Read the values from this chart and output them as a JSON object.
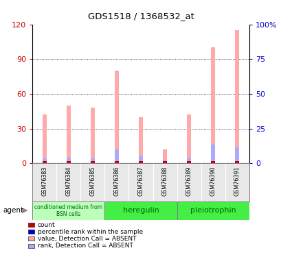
{
  "title": "GDS1518 / 1368532_at",
  "samples": [
    "GSM76383",
    "GSM76384",
    "GSM76385",
    "GSM76386",
    "GSM76387",
    "GSM76388",
    "GSM76389",
    "GSM76390",
    "GSM76391"
  ],
  "pink_values": [
    42,
    50,
    48,
    80,
    40,
    12,
    42,
    100,
    115
  ],
  "blue_values": [
    4,
    5,
    4,
    12,
    6,
    3,
    4,
    16,
    14
  ],
  "red_values": [
    2,
    2,
    2,
    2,
    2,
    2,
    2,
    2,
    2
  ],
  "ylim_left": [
    0,
    120
  ],
  "ylim_right": [
    0,
    100
  ],
  "yticks_left": [
    0,
    30,
    60,
    90,
    120
  ],
  "yticks_right": [
    0,
    25,
    50,
    75,
    100
  ],
  "ytick_labels_left": [
    "0",
    "30",
    "60",
    "90",
    "120"
  ],
  "ytick_labels_right": [
    "0",
    "25",
    "50",
    "75",
    "100%"
  ],
  "groups": [
    {
      "label": "conditioned medium from\nBSN cells",
      "start": 0,
      "end": 3,
      "color": "#bbffbb"
    },
    {
      "label": "heregulin",
      "start": 3,
      "end": 6,
      "color": "#44ee44"
    },
    {
      "label": "pleiotrophin",
      "start": 6,
      "end": 9,
      "color": "#44ee44"
    }
  ],
  "bar_width": 0.18,
  "pink_color": "#ffaaaa",
  "blue_color": "#aaaaff",
  "red_color": "#cc0000",
  "agent_label": "agent",
  "legend_items": [
    {
      "color": "#cc0000",
      "label": "count"
    },
    {
      "color": "#0000cc",
      "label": "percentile rank within the sample"
    },
    {
      "color": "#ffaaaa",
      "label": "value, Detection Call = ABSENT"
    },
    {
      "color": "#aaaaff",
      "label": "rank, Detection Call = ABSENT"
    }
  ],
  "left_tick_color": "#cc0000",
  "right_tick_color": "#0000cc"
}
